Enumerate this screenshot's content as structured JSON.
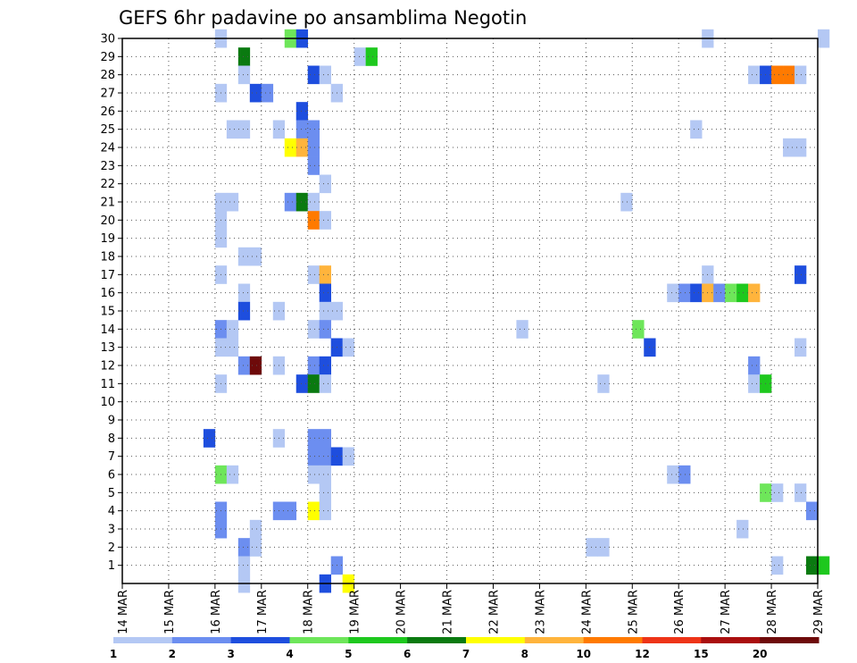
{
  "chart_data": {
    "type": "heatmap",
    "title": "GEFS 6hr padavine po ansamblima Negotin",
    "x_ticks": [
      "14 MAR",
      "15 MAR",
      "16 MAR",
      "17 MAR",
      "18 MAR",
      "19 MAR",
      "20 MAR",
      "21 MAR",
      "22 MAR",
      "23 MAR",
      "24 MAR",
      "25 MAR",
      "26 MAR",
      "27 MAR",
      "28 MAR",
      "29 MAR"
    ],
    "y_ticks": [
      "1",
      "2",
      "3",
      "4",
      "5",
      "6",
      "7",
      "8",
      "9",
      "10",
      "11",
      "12",
      "13",
      "14",
      "15",
      "16",
      "17",
      "18",
      "19",
      "20",
      "21",
      "22",
      "23",
      "24",
      "25",
      "26",
      "27",
      "28",
      "29",
      "30"
    ],
    "xlim": [
      "14 MAR 00",
      "29 MAR 00"
    ],
    "ylim": [
      0,
      30
    ],
    "grid": true,
    "colorbar": {
      "labels": [
        "1",
        "2",
        "3",
        "4",
        "5",
        "6",
        "7",
        "8",
        "10",
        "12",
        "15",
        "20"
      ],
      "colors": [
        "#b4c8f4",
        "#6c8ef0",
        "#1e4ede",
        "#6ee65a",
        "#1ec81e",
        "#0a7a10",
        "#ffff00",
        "#ffb43c",
        "#ff7a00",
        "#ee3418",
        "#aa0e0e",
        "#6e0a0a"
      ]
    },
    "cells_note": "each cell: [time index in 6h steps from 14 MAR 00, ensemble member, color class 1-12]",
    "cells": [
      [
        8,
        30,
        1
      ],
      [
        14,
        30,
        4
      ],
      [
        15,
        30,
        3
      ],
      [
        50,
        30,
        1
      ],
      [
        60,
        30,
        1
      ],
      [
        10,
        29,
        6
      ],
      [
        20,
        29,
        1
      ],
      [
        21,
        29,
        5
      ],
      [
        10,
        28,
        1
      ],
      [
        16,
        28,
        3
      ],
      [
        17,
        28,
        1
      ],
      [
        54,
        28,
        1
      ],
      [
        55,
        28,
        3
      ],
      [
        56,
        28,
        9
      ],
      [
        57,
        28,
        9
      ],
      [
        58,
        28,
        1
      ],
      [
        8,
        27,
        1
      ],
      [
        11,
        27,
        3
      ],
      [
        12,
        27,
        2
      ],
      [
        18,
        27,
        1
      ],
      [
        15,
        26,
        3
      ],
      [
        9,
        25,
        1
      ],
      [
        10,
        25,
        1
      ],
      [
        13,
        25,
        1
      ],
      [
        15,
        25,
        2
      ],
      [
        16,
        25,
        2
      ],
      [
        49,
        25,
        1
      ],
      [
        14,
        24,
        7
      ],
      [
        15,
        24,
        8
      ],
      [
        16,
        24,
        2
      ],
      [
        57,
        24,
        1
      ],
      [
        58,
        24,
        1
      ],
      [
        16,
        23,
        2
      ],
      [
        17,
        22,
        1
      ],
      [
        8,
        21,
        1
      ],
      [
        9,
        21,
        1
      ],
      [
        14,
        21,
        2
      ],
      [
        15,
        21,
        6
      ],
      [
        16,
        21,
        1
      ],
      [
        43,
        21,
        1
      ],
      [
        8,
        20,
        1
      ],
      [
        16,
        20,
        9
      ],
      [
        17,
        20,
        1
      ],
      [
        8,
        19,
        1
      ],
      [
        10,
        18,
        1
      ],
      [
        11,
        18,
        1
      ],
      [
        8,
        17,
        1
      ],
      [
        16,
        17,
        1
      ],
      [
        17,
        17,
        8
      ],
      [
        50,
        17,
        1
      ],
      [
        58,
        17,
        3
      ],
      [
        10,
        16,
        1
      ],
      [
        17,
        16,
        3
      ],
      [
        47,
        16,
        1
      ],
      [
        48,
        16,
        2
      ],
      [
        49,
        16,
        3
      ],
      [
        50,
        16,
        8
      ],
      [
        51,
        16,
        2
      ],
      [
        52,
        16,
        4
      ],
      [
        53,
        16,
        5
      ],
      [
        54,
        16,
        8
      ],
      [
        10,
        15,
        3
      ],
      [
        13,
        15,
        1
      ],
      [
        17,
        15,
        1
      ],
      [
        18,
        15,
        1
      ],
      [
        8,
        14,
        2
      ],
      [
        9,
        14,
        1
      ],
      [
        16,
        14,
        1
      ],
      [
        17,
        14,
        2
      ],
      [
        34,
        14,
        1
      ],
      [
        44,
        14,
        4
      ],
      [
        8,
        13,
        1
      ],
      [
        9,
        13,
        1
      ],
      [
        18,
        13,
        3
      ],
      [
        19,
        13,
        1
      ],
      [
        45,
        13,
        3
      ],
      [
        58,
        13,
        1
      ],
      [
        10,
        12,
        2
      ],
      [
        11,
        12,
        12
      ],
      [
        13,
        12,
        1
      ],
      [
        16,
        12,
        2
      ],
      [
        17,
        12,
        3
      ],
      [
        54,
        12,
        2
      ],
      [
        8,
        11,
        1
      ],
      [
        15,
        11,
        3
      ],
      [
        16,
        11,
        6
      ],
      [
        17,
        11,
        1
      ],
      [
        41,
        11,
        1
      ],
      [
        54,
        11,
        1
      ],
      [
        55,
        11,
        5
      ],
      [
        7,
        8,
        3
      ],
      [
        13,
        8,
        1
      ],
      [
        16,
        8,
        2
      ],
      [
        17,
        8,
        2
      ],
      [
        16,
        7,
        2
      ],
      [
        17,
        7,
        2
      ],
      [
        18,
        7,
        3
      ],
      [
        19,
        7,
        1
      ],
      [
        8,
        6,
        4
      ],
      [
        9,
        6,
        1
      ],
      [
        16,
        6,
        1
      ],
      [
        17,
        6,
        1
      ],
      [
        47,
        6,
        1
      ],
      [
        48,
        6,
        2
      ],
      [
        17,
        5,
        1
      ],
      [
        55,
        5,
        4
      ],
      [
        56,
        5,
        1
      ],
      [
        58,
        5,
        1
      ],
      [
        8,
        4,
        2
      ],
      [
        13,
        4,
        2
      ],
      [
        14,
        4,
        2
      ],
      [
        16,
        4,
        7
      ],
      [
        17,
        4,
        1
      ],
      [
        59,
        4,
        2
      ],
      [
        8,
        3,
        2
      ],
      [
        11,
        3,
        1
      ],
      [
        53,
        3,
        1
      ],
      [
        10,
        2,
        2
      ],
      [
        11,
        2,
        1
      ],
      [
        40,
        2,
        1
      ],
      [
        41,
        2,
        1
      ],
      [
        10,
        1,
        1
      ],
      [
        18,
        1,
        2
      ],
      [
        56,
        1,
        1
      ],
      [
        59,
        1,
        6
      ],
      [
        60,
        1,
        5
      ],
      [
        10,
        0,
        1
      ],
      [
        17,
        0,
        3
      ],
      [
        19,
        0,
        7
      ]
    ]
  }
}
